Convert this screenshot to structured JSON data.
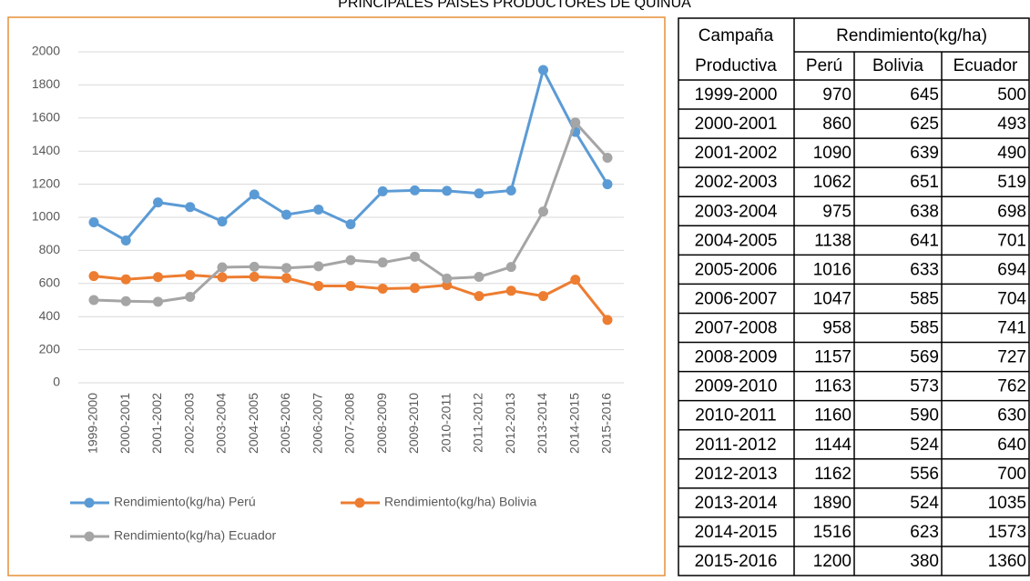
{
  "title": "PRINCIPALES PAISES PRODUCTORES DE QUINUA",
  "chart_data": {
    "type": "line",
    "categories": [
      "1999-2000",
      "2000-2001",
      "2001-2002",
      "2002-2003",
      "2003-2004",
      "2004-2005",
      "2005-2006",
      "2006-2007",
      "2007-2008",
      "2008-2009",
      "2009-2010",
      "2010-2011",
      "2011-2012",
      "2012-2013",
      "2013-2014",
      "2014-2015",
      "2015-2016"
    ],
    "series": [
      {
        "name": "Rendimiento(kg/ha) Perú",
        "color": "#5b9bd5",
        "values": [
          970,
          860,
          1090,
          1062,
          975,
          1138,
          1016,
          1047,
          958,
          1157,
          1163,
          1160,
          1144,
          1162,
          1890,
          1516,
          1200
        ]
      },
      {
        "name": "Rendimiento(kg/ha) Bolivia",
        "color": "#ed7d31",
        "values": [
          645,
          625,
          639,
          651,
          638,
          641,
          633,
          585,
          585,
          569,
          573,
          590,
          524,
          556,
          524,
          623,
          380
        ]
      },
      {
        "name": "Rendimiento(kg/ha) Ecuador",
        "color": "#a5a5a5",
        "values": [
          500,
          493,
          490,
          519,
          698,
          701,
          694,
          704,
          741,
          727,
          762,
          630,
          640,
          700,
          1035,
          1573,
          1360
        ]
      }
    ],
    "ylim": [
      0,
      2000
    ],
    "yticks": [
      0,
      200,
      400,
      600,
      800,
      1000,
      1200,
      1400,
      1600,
      1800,
      2000
    ],
    "grid": true,
    "legend": "bottom"
  },
  "table": {
    "first_header": [
      "Campaña",
      "Productiva"
    ],
    "group_header": "Rendimiento(kg/ha)",
    "columns": [
      "Perú",
      "Bolivia",
      "Ecuador"
    ],
    "rows": [
      [
        "1999-2000",
        970,
        645,
        500
      ],
      [
        "2000-2001",
        860,
        625,
        493
      ],
      [
        "2001-2002",
        1090,
        639,
        490
      ],
      [
        "2002-2003",
        1062,
        651,
        519
      ],
      [
        "2003-2004",
        975,
        638,
        698
      ],
      [
        "2004-2005",
        1138,
        641,
        701
      ],
      [
        "2005-2006",
        1016,
        633,
        694
      ],
      [
        "2006-2007",
        1047,
        585,
        704
      ],
      [
        "2007-2008",
        958,
        585,
        741
      ],
      [
        "2008-2009",
        1157,
        569,
        727
      ],
      [
        "2009-2010",
        1163,
        573,
        762
      ],
      [
        "2010-2011",
        1160,
        590,
        630
      ],
      [
        "2011-2012",
        1144,
        524,
        640
      ],
      [
        "2012-2013",
        1162,
        556,
        700
      ],
      [
        "2013-2014",
        1890,
        524,
        1035
      ],
      [
        "2014-2015",
        1516,
        623,
        1573
      ],
      [
        "2015-2016",
        1200,
        380,
        1360
      ]
    ]
  }
}
